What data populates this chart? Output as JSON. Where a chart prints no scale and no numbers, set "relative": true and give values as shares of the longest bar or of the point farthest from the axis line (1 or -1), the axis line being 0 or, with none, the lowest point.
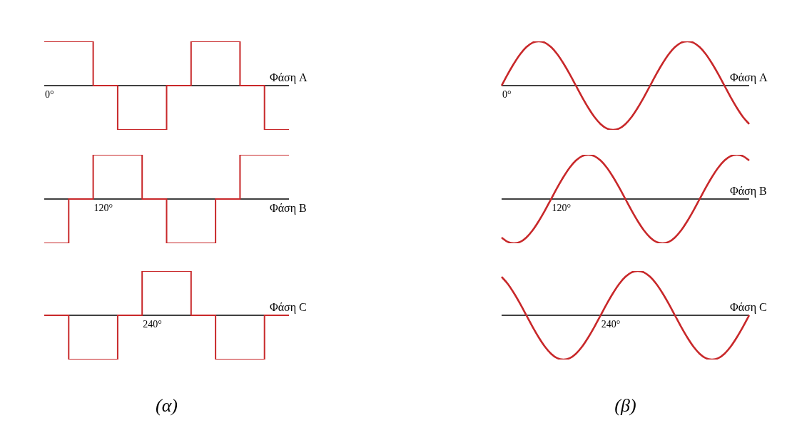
{
  "chart_data": [
    {
      "type": "step",
      "relative": true,
      "categories": [
        null,
        null,
        null,
        null,
        null,
        null,
        null,
        null,
        null,
        null,
        null
      ],
      "annotations": [
        "0°"
      ],
      "series": [
        {
          "name": "Φάση A",
          "color": "#c8282a",
          "values": [
            1,
            1,
            0,
            -1,
            -1,
            0,
            1,
            1,
            0,
            -1,
            -1
          ]
        }
      ]
    },
    {
      "type": "step",
      "relative": true,
      "categories": [
        null,
        null,
        null,
        null,
        null,
        null,
        null,
        null,
        null,
        null,
        null
      ],
      "annotations": [
        "120°"
      ],
      "series": [
        {
          "name": "Φάση B",
          "color": "#c8282a",
          "values": [
            -1,
            0,
            1,
            1,
            0,
            -1,
            -1,
            0,
            1,
            1,
            1
          ]
        }
      ]
    },
    {
      "type": "step",
      "relative": true,
      "categories": [
        null,
        null,
        null,
        null,
        null,
        null,
        null,
        null,
        null,
        null,
        null
      ],
      "annotations": [
        "240°"
      ],
      "xlabel": "(α)",
      "series": [
        {
          "name": "Φάση C",
          "color": "#c8282a",
          "values": [
            0,
            -1,
            -1,
            0,
            1,
            1,
            0,
            -1,
            -1,
            0,
            0
          ]
        }
      ]
    },
    {
      "type": "line",
      "relative": true,
      "categories": [
        null,
        null,
        null,
        null,
        null,
        null,
        null,
        null,
        null,
        null,
        null,
        null,
        null,
        null,
        null,
        null,
        null,
        null,
        null,
        null,
        null,
        null,
        null,
        null,
        null,
        null,
        null,
        null,
        null,
        null,
        null,
        null,
        null,
        null,
        null,
        null,
        null,
        null,
        null,
        null,
        null
      ],
      "annotations": [
        "0°"
      ],
      "series": [
        {
          "name": "Φάση A",
          "color": "#c8282a",
          "values": [
            0,
            0.26,
            0.5,
            0.71,
            0.87,
            0.97,
            1,
            0.97,
            0.87,
            0.71,
            0.5,
            0.26,
            0,
            -0.26,
            -0.5,
            -0.71,
            -0.87,
            -0.97,
            -1,
            -0.97,
            -0.87,
            -0.71,
            -0.5,
            -0.26,
            0,
            0.26,
            0.5,
            0.71,
            0.87,
            0.97,
            1,
            0.97,
            0.87,
            0.71,
            0.5,
            0.26,
            0,
            -0.26,
            -0.5,
            -0.71,
            -0.87
          ]
        }
      ]
    },
    {
      "type": "line",
      "relative": true,
      "categories": [
        null,
        null,
        null,
        null,
        null,
        null,
        null,
        null,
        null,
        null,
        null,
        null,
        null,
        null,
        null,
        null,
        null,
        null,
        null,
        null,
        null,
        null,
        null,
        null,
        null,
        null,
        null,
        null,
        null,
        null,
        null,
        null,
        null,
        null,
        null,
        null,
        null,
        null,
        null,
        null,
        null
      ],
      "annotations": [
        "120°"
      ],
      "series": [
        {
          "name": "Φάση B",
          "color": "#c8282a",
          "values": [
            -0.87,
            -0.97,
            -1,
            -0.97,
            -0.87,
            -0.71,
            -0.5,
            -0.26,
            0,
            0.26,
            0.5,
            0.71,
            0.87,
            0.97,
            1,
            0.97,
            0.87,
            0.71,
            0.5,
            0.26,
            0,
            -0.26,
            -0.5,
            -0.71,
            -0.87,
            -0.97,
            -1,
            -0.97,
            -0.87,
            -0.71,
            -0.5,
            -0.26,
            0,
            0.26,
            0.5,
            0.71,
            0.87,
            0.97,
            1,
            0.97,
            0.87
          ]
        }
      ]
    },
    {
      "type": "line",
      "relative": true,
      "categories": [
        null,
        null,
        null,
        null,
        null,
        null,
        null,
        null,
        null,
        null,
        null,
        null,
        null,
        null,
        null,
        null,
        null,
        null,
        null,
        null,
        null,
        null,
        null,
        null,
        null,
        null,
        null,
        null,
        null,
        null,
        null,
        null,
        null,
        null,
        null,
        null,
        null,
        null,
        null,
        null,
        null
      ],
      "annotations": [
        "240°"
      ],
      "xlabel": "(β)",
      "series": [
        {
          "name": "Φάση C",
          "color": "#c8282a",
          "values": [
            0.87,
            0.71,
            0.5,
            0.26,
            0,
            -0.26,
            -0.5,
            -0.71,
            -0.87,
            -0.97,
            -1,
            -0.97,
            -0.87,
            -0.71,
            -0.5,
            -0.26,
            0,
            0.26,
            0.5,
            0.71,
            0.87,
            0.97,
            1,
            0.97,
            0.87,
            0.71,
            0.5,
            0.26,
            0,
            -0.26,
            -0.5,
            -0.71,
            -0.87,
            -0.97,
            -1,
            -0.97,
            -0.87,
            -0.71,
            -0.5,
            -0.26,
            0
          ]
        }
      ]
    }
  ]
}
